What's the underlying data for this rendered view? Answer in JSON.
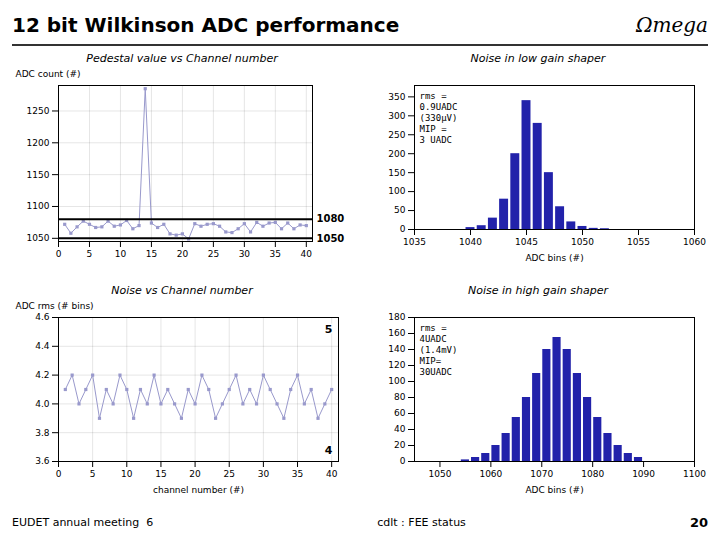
{
  "title": "12 bit Wilkinson ADC performance",
  "annotations": [
    "Ωmega",
    "EUDET annual meeting  6",
    "cdlt : FEE status",
    "20"
  ],
  "chart_data": [
    {
      "type": "line",
      "title": "Pedestal value vs Channel number",
      "y_label": "ADC count (#)",
      "x": [
        1,
        2,
        3,
        4,
        5,
        6,
        7,
        8,
        9,
        10,
        11,
        12,
        13,
        14,
        15,
        16,
        17,
        18,
        19,
        20,
        21,
        22,
        23,
        24,
        25,
        26,
        27,
        28,
        29,
        30,
        31,
        32,
        33,
        34,
        35,
        36,
        37,
        38,
        39,
        40
      ],
      "series": [
        {
          "name": "Pedestal",
          "color": "#9999CC",
          "marker": "square",
          "values": [
            1072,
            1058,
            1068,
            1077,
            1072,
            1067,
            1068,
            1077,
            1069,
            1071,
            1078,
            1065,
            1070,
            1285,
            1074,
            1067,
            1072,
            1057,
            1055,
            1057,
            1049,
            1073,
            1069,
            1072,
            1073,
            1069,
            1060,
            1059,
            1065,
            1073,
            1060,
            1075,
            1069,
            1074,
            1075,
            1065,
            1074,
            1065,
            1071,
            1070
          ]
        }
      ],
      "hlines": [
        {
          "value": 1080,
          "label": "1080"
        },
        {
          "value": 1050,
          "label": "1050"
        }
      ],
      "xlim": [
        0,
        41
      ],
      "xticks": [
        0,
        5,
        10,
        15,
        20,
        25,
        30,
        35,
        40
      ],
      "ylim": [
        1045,
        1290
      ],
      "yticks": [
        1050,
        1100,
        1150,
        1200,
        1250
      ],
      "grid": true
    },
    {
      "type": "line",
      "title": "Noise vs Channel number",
      "x_label": "channel number (#)",
      "y_label": "ADC rms (# bins)",
      "x": [
        1,
        2,
        3,
        4,
        5,
        6,
        7,
        8,
        9,
        10,
        11,
        12,
        13,
        14,
        15,
        16,
        17,
        18,
        19,
        20,
        21,
        22,
        23,
        24,
        25,
        26,
        27,
        28,
        29,
        30,
        31,
        32,
        33,
        34,
        35,
        36,
        37,
        38,
        39,
        40
      ],
      "series": [
        {
          "name": "Noise",
          "color": "#9999CC",
          "marker": "square",
          "values": [
            4.1,
            4.2,
            4.0,
            4.1,
            4.2,
            3.9,
            4.1,
            4.0,
            4.2,
            4.1,
            3.9,
            4.1,
            4.0,
            4.2,
            4.0,
            4.1,
            4.0,
            3.9,
            4.1,
            4.0,
            4.2,
            4.1,
            3.9,
            4.0,
            4.1,
            4.2,
            4.0,
            4.1,
            4.0,
            4.2,
            4.1,
            4.0,
            3.9,
            4.1,
            4.2,
            4.0,
            4.1,
            3.9,
            4.0,
            4.1
          ]
        }
      ],
      "annotations": [
        "5",
        "4"
      ],
      "xlim": [
        0,
        41
      ],
      "xticks": [
        0,
        5,
        10,
        15,
        20,
        25,
        30,
        35,
        40
      ],
      "ylim": [
        3.6,
        4.6
      ],
      "yticks": [
        3.6,
        3.8,
        {
          "value": 4,
          "label": "4.0"
        },
        4.2,
        4.4,
        4.6
      ],
      "grid": true
    },
    {
      "type": "bar",
      "title": "Noise in low gain shaper",
      "x_label": "ADC bins (#)",
      "x": [
        1040,
        1041,
        1042,
        1043,
        1044,
        1045,
        1046,
        1047,
        1048,
        1049,
        1050,
        1051,
        1052
      ],
      "values": [
        5,
        10,
        30,
        80,
        200,
        340,
        280,
        150,
        60,
        20,
        8,
        3,
        2
      ],
      "color": "#2222AA",
      "annotations": [
        "rms =\n0.9UADC\n(330μV)\nMIP =\n3 UADC"
      ],
      "xlim": [
        1035,
        1060
      ],
      "xticks": [
        1035,
        1040,
        1045,
        1050,
        1055,
        1060
      ],
      "ylim": [
        0,
        380
      ],
      "yticks": [
        0,
        50,
        100,
        150,
        200,
        250,
        300,
        350
      ],
      "grid": false
    },
    {
      "type": "bar",
      "title": "Noise in high gain shaper",
      "x_label": "ADC bins (#)",
      "x": [
        1055,
        1057,
        1059,
        1061,
        1063,
        1065,
        1067,
        1069,
        1071,
        1073,
        1075,
        1077,
        1079,
        1081,
        1083,
        1085,
        1087,
        1089
      ],
      "values": [
        2,
        5,
        10,
        20,
        35,
        55,
        80,
        110,
        140,
        155,
        140,
        110,
        80,
        55,
        35,
        20,
        10,
        5
      ],
      "color": "#2222AA",
      "annotations": [
        "rms =\n4UADC\n(1.4mV)\nMIP=\n30UADC"
      ],
      "xlim": [
        1045,
        1100
      ],
      "xticks": [
        1050,
        1060,
        1070,
        1080,
        1090,
        1100
      ],
      "ylim": [
        0,
        180
      ],
      "yticks": [
        0,
        20,
        40,
        60,
        80,
        100,
        120,
        140,
        160,
        180
      ],
      "grid": false
    }
  ]
}
